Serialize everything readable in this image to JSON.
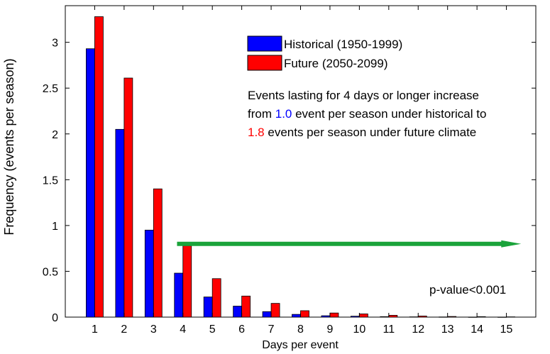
{
  "chart_data": {
    "type": "bar",
    "xlabel": "Days per event",
    "ylabel": "Frequency (events per season)",
    "xlim": [
      0,
      16
    ],
    "ylim": [
      0,
      3.4
    ],
    "categories": [
      "1",
      "2",
      "3",
      "4",
      "5",
      "6",
      "7",
      "8",
      "9",
      "10",
      "11",
      "12",
      "13",
      "14",
      "15"
    ],
    "yticks": [
      {
        "value": 0,
        "label": "0"
      },
      {
        "value": 0.5,
        "label": "0.5"
      },
      {
        "value": 1,
        "label": "1"
      },
      {
        "value": 1.5,
        "label": "1.5"
      },
      {
        "value": 2,
        "label": "2"
      },
      {
        "value": 2.5,
        "label": "2.5"
      },
      {
        "value": 3,
        "label": "3"
      }
    ],
    "grid": false,
    "legend_position": "top-right",
    "series": [
      {
        "name": "Historical (1950-1999)",
        "color": "#0000ff",
        "values": [
          2.93,
          2.05,
          0.95,
          0.48,
          0.22,
          0.12,
          0.06,
          0.03,
          0.015,
          0.01,
          0.005,
          0.003,
          0.002,
          0.001,
          0.001
        ]
      },
      {
        "name": "Future (2050-2099)",
        "color": "#ff0000",
        "values": [
          3.28,
          2.61,
          1.4,
          0.78,
          0.42,
          0.23,
          0.15,
          0.07,
          0.045,
          0.035,
          0.02,
          0.012,
          0.007,
          0.005,
          0.003
        ]
      }
    ],
    "annotation": {
      "line1": "Events lasting for 4 days or longer increase",
      "line2_prefix": "from ",
      "line2_value": "1.0",
      "line2_suffix": " event per season under historical to",
      "line3_value": "1.8",
      "line3_suffix": " events per season under future climate",
      "historical_color": "#0000ff",
      "future_color": "#ff0000"
    },
    "arrow": {
      "x_start": 3.8,
      "x_end": 15.5,
      "y": 0.8,
      "color": "#1aa33a"
    },
    "pvalue_label": "p-value<0.001"
  }
}
